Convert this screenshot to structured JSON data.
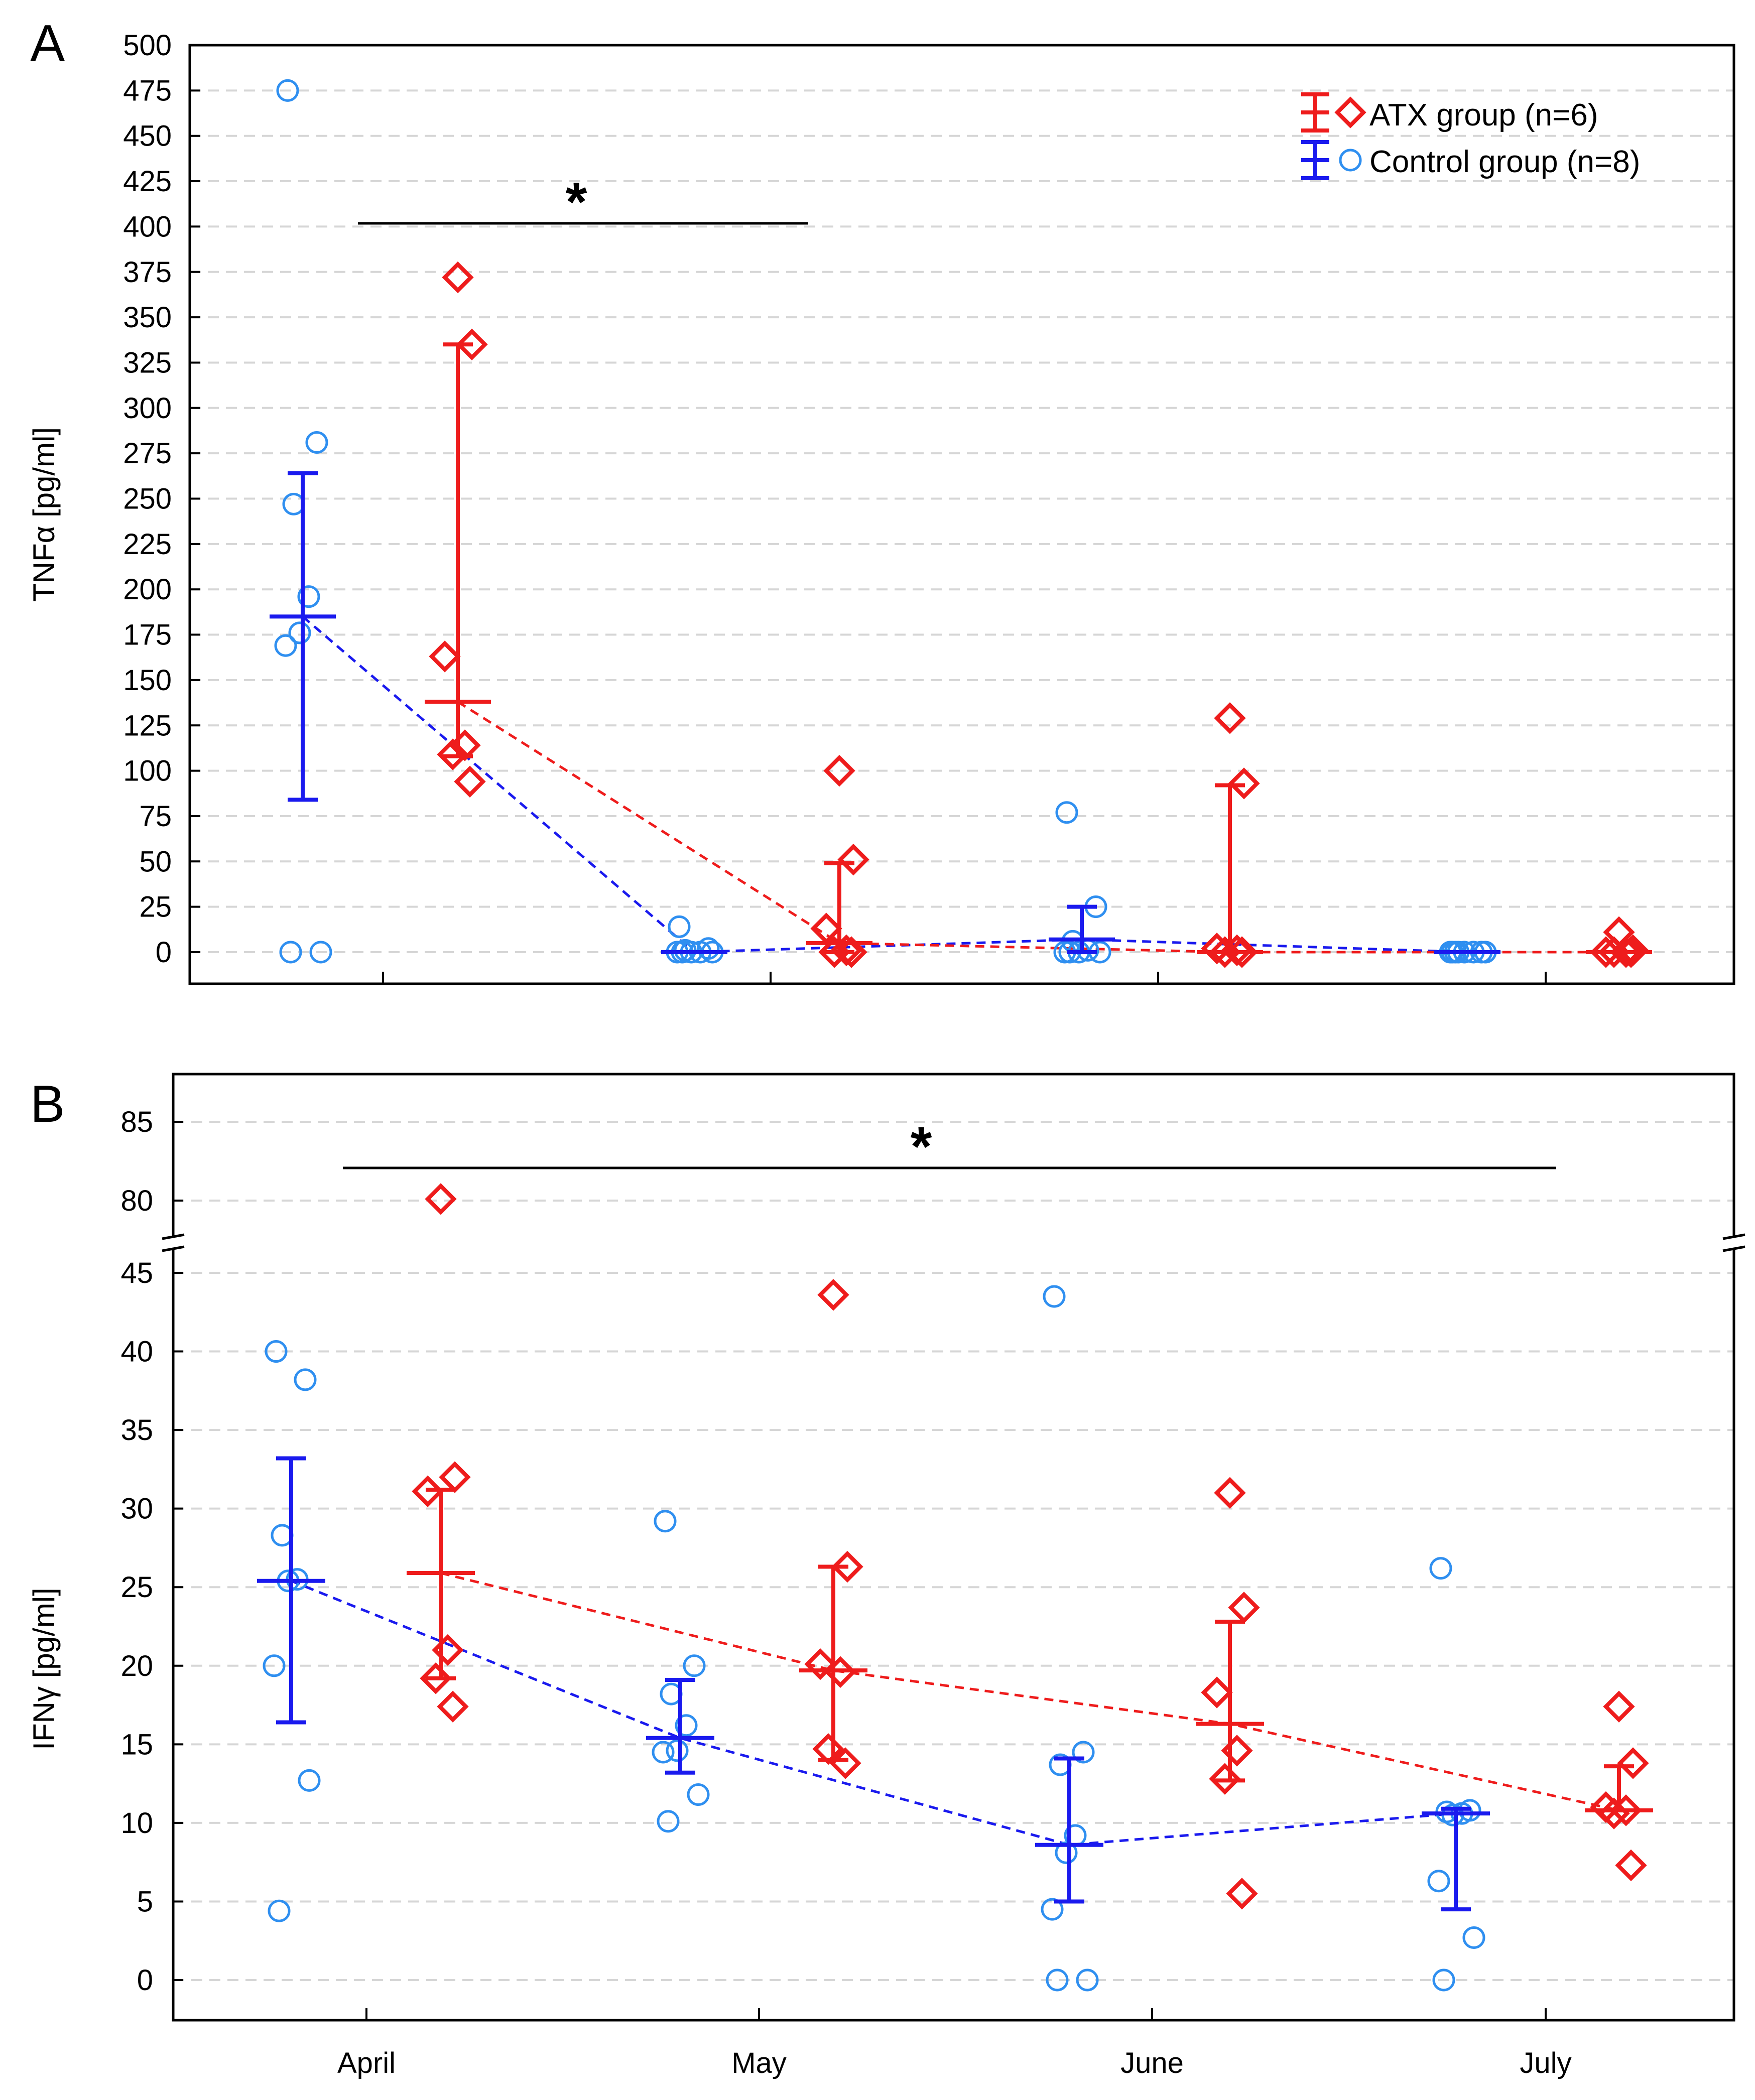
{
  "colors": {
    "atx": "#ee1c1c",
    "control": "#1a1aee",
    "control_points": "#2f8ff0"
  },
  "chart_data": [
    {
      "panel": "A",
      "type": "scatter",
      "ylabel": "TNFα [pg/ml]",
      "ylim": [
        0,
        500
      ],
      "yticks": [
        0,
        25,
        50,
        75,
        100,
        125,
        150,
        175,
        200,
        225,
        250,
        275,
        300,
        325,
        350,
        375,
        400,
        425,
        450,
        475,
        500
      ],
      "months": [
        "April",
        "May",
        "June",
        "July"
      ],
      "legend": {
        "position": "top-right",
        "atx": "ATX group (n=6)",
        "control": "Control group (n=8)"
      },
      "significance": {
        "label": "*",
        "from": "April",
        "to": "May"
      },
      "series": [
        {
          "name": "Control group (n=8)",
          "marker": "circle",
          "points": [
            [
              0,
              475
            ],
            [
              0,
              281
            ],
            [
              0,
              247
            ],
            [
              0,
              196
            ],
            [
              0,
              176
            ],
            [
              0,
              169
            ],
            [
              0,
              0
            ],
            [
              0,
              0
            ],
            [
              1,
              14
            ],
            [
              1,
              2
            ],
            [
              1,
              1
            ],
            [
              1,
              0
            ],
            [
              1,
              0
            ],
            [
              1,
              0
            ],
            [
              1,
              0
            ],
            [
              1,
              0
            ],
            [
              2,
              77
            ],
            [
              2,
              25
            ],
            [
              2,
              6
            ],
            [
              2,
              1
            ],
            [
              2,
              0
            ],
            [
              2,
              0
            ],
            [
              2,
              0
            ],
            [
              2,
              0
            ],
            [
              3,
              0
            ],
            [
              3,
              0
            ],
            [
              3,
              0
            ],
            [
              3,
              0
            ],
            [
              3,
              0
            ],
            [
              3,
              0
            ],
            [
              3,
              0
            ],
            [
              3,
              0
            ]
          ],
          "center": [
            185,
            0,
            7,
            0
          ],
          "lower": [
            84,
            0,
            0,
            0
          ],
          "upper": [
            264,
            0,
            25,
            0
          ]
        },
        {
          "name": "ATX group (n=6)",
          "marker": "diamond",
          "points": [
            [
              0,
              372
            ],
            [
              0,
              335
            ],
            [
              0,
              163
            ],
            [
              0,
              114
            ],
            [
              0,
              109
            ],
            [
              0,
              94
            ],
            [
              1,
              100
            ],
            [
              1,
              51
            ],
            [
              1,
              13
            ],
            [
              1,
              1
            ],
            [
              1,
              0
            ],
            [
              1,
              0
            ],
            [
              2,
              129
            ],
            [
              2,
              93
            ],
            [
              2,
              2
            ],
            [
              2,
              1
            ],
            [
              2,
              0
            ],
            [
              2,
              0
            ],
            [
              3,
              11
            ],
            [
              3,
              1
            ],
            [
              3,
              0
            ],
            [
              3,
              0
            ],
            [
              3,
              0
            ],
            [
              3,
              0
            ]
          ],
          "center": [
            138,
            5,
            0,
            0
          ],
          "lower": [
            108,
            0,
            0,
            0
          ],
          "upper": [
            335,
            49,
            92,
            0
          ]
        }
      ]
    },
    {
      "panel": "B",
      "type": "scatter",
      "ylabel": "IFNγ [pg/ml]",
      "yticks_lower": [
        0,
        5,
        10,
        15,
        20,
        25,
        30,
        35,
        40,
        45
      ],
      "yticks_upper": [
        80,
        85
      ],
      "ylim_lower": [
        -1.5,
        45.5
      ],
      "ylim_upper": [
        79.2,
        86.8
      ],
      "axis_break": [
        46,
        79
      ],
      "xlabel": "",
      "months": [
        "April",
        "May",
        "June",
        "July"
      ],
      "significance": {
        "label": "*",
        "from": "April",
        "to": "July"
      },
      "series": [
        {
          "name": "Control group (n=8)",
          "marker": "circle",
          "points": [
            [
              0,
              40
            ],
            [
              0,
              38.2
            ],
            [
              0,
              28.3
            ],
            [
              0,
              25.5
            ],
            [
              0,
              25.4
            ],
            [
              0,
              20
            ],
            [
              0,
              12.7
            ],
            [
              0,
              4.4
            ],
            [
              1,
              29.2
            ],
            [
              1,
              20
            ],
            [
              1,
              18.2
            ],
            [
              1,
              16.2
            ],
            [
              1,
              14.6
            ],
            [
              1,
              14.5
            ],
            [
              1,
              11.8
            ],
            [
              1,
              10.1
            ],
            [
              2,
              43.5
            ],
            [
              2,
              14.5
            ],
            [
              2,
              13.7
            ],
            [
              2,
              9.2
            ],
            [
              2,
              8.1
            ],
            [
              2,
              4.5
            ],
            [
              2,
              0
            ],
            [
              2,
              0
            ],
            [
              3,
              26.2
            ],
            [
              3,
              10.8
            ],
            [
              3,
              10.7
            ],
            [
              3,
              10.6
            ],
            [
              3,
              10.5
            ],
            [
              3,
              6.3
            ],
            [
              3,
              2.7
            ],
            [
              3,
              0
            ]
          ],
          "center": [
            25.4,
            15.4,
            8.6,
            10.6
          ],
          "lower": [
            16.4,
            13.2,
            5,
            4.5
          ],
          "upper": [
            33.2,
            19.1,
            14.1,
            10.9
          ]
        },
        {
          "name": "ATX group (n=6)",
          "marker": "diamond",
          "points": [
            [
              0,
              80.1
            ],
            [
              0,
              32
            ],
            [
              0,
              31.1
            ],
            [
              0,
              21
            ],
            [
              0,
              19.2
            ],
            [
              0,
              17.4
            ],
            [
              1,
              43.6
            ],
            [
              1,
              26.3
            ],
            [
              1,
              20.1
            ],
            [
              1,
              19.6
            ],
            [
              1,
              14.7
            ],
            [
              1,
              13.8
            ],
            [
              2,
              31
            ],
            [
              2,
              23.7
            ],
            [
              2,
              18.3
            ],
            [
              2,
              14.6
            ],
            [
              2,
              12.8
            ],
            [
              2,
              5.5
            ],
            [
              3,
              17.4
            ],
            [
              3,
              13.8
            ],
            [
              3,
              11
            ],
            [
              3,
              10.8
            ],
            [
              3,
              10.6
            ],
            [
              3,
              7.3
            ]
          ],
          "center": [
            25.9,
            19.7,
            16.3,
            10.8
          ],
          "lower": [
            19.2,
            14,
            12.7,
            10.8
          ],
          "upper": [
            31.2,
            26.3,
            22.8,
            13.6
          ]
        }
      ]
    }
  ]
}
